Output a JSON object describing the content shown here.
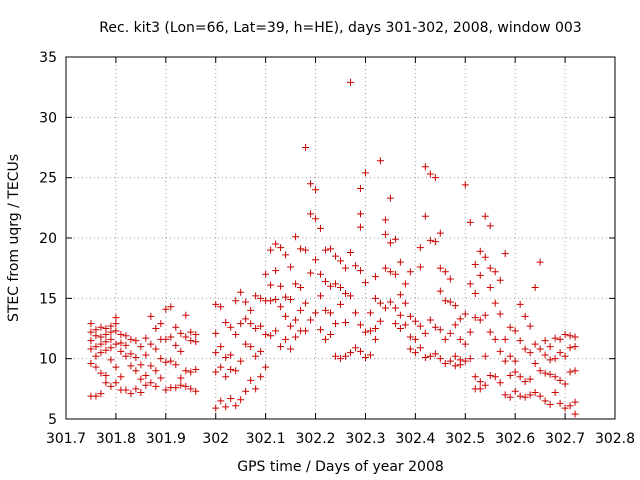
{
  "chart_data": {
    "type": "scatter",
    "title": "Rec. kit3 (Lon=66, Lat=39, h=HE), days 301-302, 2008, window 003",
    "xlabel": "GPS time / Days of year 2008",
    "ylabel": "STEC from uqrg / TECUs",
    "xlim": [
      301.7,
      302.8
    ],
    "ylim": [
      5,
      35
    ],
    "x_ticks": [
      301.7,
      301.8,
      301.9,
      302.0,
      302.1,
      302.2,
      302.3,
      302.4,
      302.5,
      302.6,
      302.7,
      302.8
    ],
    "x_tick_labels": [
      "301.7",
      "301.8",
      "301.9",
      "302",
      "302.1",
      "302.2",
      "302.3",
      "302.4",
      "302.5",
      "302.6",
      "302.7",
      "302.8"
    ],
    "y_ticks": [
      5,
      10,
      15,
      20,
      25,
      30,
      35
    ],
    "y_tick_labels": [
      "5",
      "10",
      "15",
      "20",
      "25",
      "30",
      "35"
    ],
    "grid": true,
    "marker": "+",
    "color": "#cc0000",
    "points": [
      [
        301.75,
        12.9
      ],
      [
        301.75,
        12.2
      ],
      [
        301.75,
        11.5
      ],
      [
        301.75,
        10.8
      ],
      [
        301.75,
        9.6
      ],
      [
        301.75,
        6.9
      ],
      [
        301.76,
        12.4
      ],
      [
        301.76,
        11.9
      ],
      [
        301.76,
        11.0
      ],
      [
        301.76,
        10.2
      ],
      [
        301.76,
        9.3
      ],
      [
        301.76,
        6.9
      ],
      [
        301.77,
        12.6
      ],
      [
        301.77,
        11.8
      ],
      [
        301.77,
        11.2
      ],
      [
        301.77,
        10.5
      ],
      [
        301.77,
        8.8
      ],
      [
        301.77,
        7.1
      ],
      [
        301.78,
        12.5
      ],
      [
        301.78,
        12.0
      ],
      [
        301.78,
        11.4
      ],
      [
        301.78,
        10.7
      ],
      [
        301.78,
        8.6
      ],
      [
        301.78,
        8.0
      ],
      [
        301.79,
        12.7
      ],
      [
        301.79,
        12.2
      ],
      [
        301.79,
        11.6
      ],
      [
        301.79,
        10.9
      ],
      [
        301.79,
        9.9
      ],
      [
        301.79,
        7.7
      ],
      [
        301.8,
        13.4
      ],
      [
        301.8,
        12.9
      ],
      [
        301.8,
        12.3
      ],
      [
        301.8,
        11.2
      ],
      [
        301.8,
        9.3
      ],
      [
        301.8,
        8.0
      ],
      [
        301.81,
        12.0
      ],
      [
        301.81,
        11.3
      ],
      [
        301.81,
        10.6
      ],
      [
        301.81,
        8.5
      ],
      [
        301.81,
        7.4
      ],
      [
        301.82,
        11.9
      ],
      [
        301.82,
        11.1
      ],
      [
        301.82,
        10.2
      ],
      [
        301.82,
        7.4
      ],
      [
        301.83,
        11.6
      ],
      [
        301.83,
        10.4
      ],
      [
        301.83,
        9.4
      ],
      [
        301.83,
        7.1
      ],
      [
        301.84,
        11.5
      ],
      [
        301.84,
        10.1
      ],
      [
        301.84,
        9.0
      ],
      [
        301.84,
        7.5
      ],
      [
        301.85,
        11.0
      ],
      [
        301.85,
        9.5
      ],
      [
        301.85,
        8.3
      ],
      [
        301.85,
        7.2
      ],
      [
        301.86,
        11.7
      ],
      [
        301.86,
        10.3
      ],
      [
        301.86,
        8.6
      ],
      [
        301.86,
        7.8
      ],
      [
        301.87,
        13.5
      ],
      [
        301.87,
        11.2
      ],
      [
        301.87,
        9.4
      ],
      [
        301.87,
        8.0
      ],
      [
        301.88,
        12.5
      ],
      [
        301.88,
        10.8
      ],
      [
        301.88,
        9.0
      ],
      [
        301.88,
        7.7
      ],
      [
        301.89,
        12.9
      ],
      [
        301.89,
        11.6
      ],
      [
        301.89,
        10.0
      ],
      [
        301.89,
        8.4
      ],
      [
        301.9,
        14.1
      ],
      [
        301.9,
        11.6
      ],
      [
        301.9,
        9.7
      ],
      [
        301.9,
        7.4
      ],
      [
        301.91,
        14.3
      ],
      [
        301.91,
        11.8
      ],
      [
        301.91,
        9.8
      ],
      [
        301.91,
        7.6
      ],
      [
        301.92,
        12.6
      ],
      [
        301.92,
        11.1
      ],
      [
        301.92,
        9.5
      ],
      [
        301.92,
        7.6
      ],
      [
        301.93,
        12.1
      ],
      [
        301.93,
        10.6
      ],
      [
        301.93,
        8.4
      ],
      [
        301.93,
        7.8
      ],
      [
        301.94,
        13.6
      ],
      [
        301.94,
        11.8
      ],
      [
        301.94,
        9.0
      ],
      [
        301.94,
        7.7
      ],
      [
        301.95,
        12.2
      ],
      [
        301.95,
        11.5
      ],
      [
        301.95,
        8.9
      ],
      [
        301.95,
        7.5
      ],
      [
        301.96,
        12.0
      ],
      [
        301.96,
        11.4
      ],
      [
        301.96,
        9.1
      ],
      [
        301.96,
        7.3
      ],
      [
        302.0,
        14.5
      ],
      [
        302.0,
        12.1
      ],
      [
        302.0,
        10.5
      ],
      [
        302.0,
        8.9
      ],
      [
        302.0,
        5.9
      ],
      [
        302.01,
        14.3
      ],
      [
        302.01,
        11.0
      ],
      [
        302.01,
        9.3
      ],
      [
        302.01,
        6.5
      ],
      [
        302.02,
        13.0
      ],
      [
        302.02,
        10.1
      ],
      [
        302.02,
        8.5
      ],
      [
        302.02,
        6.0
      ],
      [
        302.03,
        12.6
      ],
      [
        302.03,
        10.3
      ],
      [
        302.03,
        9.1
      ],
      [
        302.03,
        6.7
      ],
      [
        302.04,
        14.8
      ],
      [
        302.04,
        12.0
      ],
      [
        302.04,
        9.0
      ],
      [
        302.04,
        6.1
      ],
      [
        302.05,
        15.5
      ],
      [
        302.05,
        12.9
      ],
      [
        302.05,
        9.8
      ],
      [
        302.05,
        6.6
      ],
      [
        302.06,
        14.7
      ],
      [
        302.06,
        13.3
      ],
      [
        302.06,
        11.2
      ],
      [
        302.06,
        7.3
      ],
      [
        302.07,
        14.0
      ],
      [
        302.07,
        12.9
      ],
      [
        302.07,
        11.0
      ],
      [
        302.07,
        8.2
      ],
      [
        302.08,
        15.2
      ],
      [
        302.08,
        12.5
      ],
      [
        302.08,
        10.2
      ],
      [
        302.08,
        7.5
      ],
      [
        302.09,
        15.0
      ],
      [
        302.09,
        12.7
      ],
      [
        302.09,
        10.6
      ],
      [
        302.09,
        8.5
      ],
      [
        302.1,
        17.0
      ],
      [
        302.1,
        14.8
      ],
      [
        302.1,
        12.0
      ],
      [
        302.1,
        9.3
      ],
      [
        302.11,
        19.0
      ],
      [
        302.11,
        16.1
      ],
      [
        302.11,
        14.8
      ],
      [
        302.11,
        11.9
      ],
      [
        302.12,
        19.5
      ],
      [
        302.12,
        17.3
      ],
      [
        302.12,
        14.9
      ],
      [
        302.12,
        12.3
      ],
      [
        302.13,
        19.2
      ],
      [
        302.13,
        16.0
      ],
      [
        302.13,
        14.3
      ],
      [
        302.13,
        11.0
      ],
      [
        302.14,
        18.6
      ],
      [
        302.14,
        15.1
      ],
      [
        302.14,
        13.5
      ],
      [
        302.14,
        11.6
      ],
      [
        302.15,
        17.6
      ],
      [
        302.15,
        14.9
      ],
      [
        302.15,
        12.7
      ],
      [
        302.15,
        10.8
      ],
      [
        302.16,
        20.1
      ],
      [
        302.16,
        16.2
      ],
      [
        302.16,
        13.2
      ],
      [
        302.16,
        11.8
      ],
      [
        302.17,
        19.1
      ],
      [
        302.17,
        15.9
      ],
      [
        302.17,
        14.0
      ],
      [
        302.17,
        12.3
      ],
      [
        302.18,
        27.5
      ],
      [
        302.18,
        19.0
      ],
      [
        302.18,
        14.6
      ],
      [
        302.18,
        12.3
      ],
      [
        302.19,
        24.5
      ],
      [
        302.19,
        22.0
      ],
      [
        302.19,
        17.1
      ],
      [
        302.19,
        13.2
      ],
      [
        302.2,
        24.0
      ],
      [
        302.2,
        21.6
      ],
      [
        302.2,
        18.2
      ],
      [
        302.2,
        13.8
      ],
      [
        302.21,
        20.8
      ],
      [
        302.21,
        17.0
      ],
      [
        302.21,
        15.2
      ],
      [
        302.21,
        12.4
      ],
      [
        302.22,
        19.0
      ],
      [
        302.22,
        16.4
      ],
      [
        302.22,
        14.0
      ],
      [
        302.22,
        11.6
      ],
      [
        302.23,
        19.1
      ],
      [
        302.23,
        16.0
      ],
      [
        302.23,
        13.8
      ],
      [
        302.23,
        12.0
      ],
      [
        302.24,
        18.5
      ],
      [
        302.24,
        16.2
      ],
      [
        302.24,
        12.9
      ],
      [
        302.24,
        10.2
      ],
      [
        302.25,
        18.1
      ],
      [
        302.25,
        15.9
      ],
      [
        302.25,
        14.5
      ],
      [
        302.25,
        10.0
      ],
      [
        302.26,
        17.5
      ],
      [
        302.26,
        15.4
      ],
      [
        302.26,
        13.0
      ],
      [
        302.26,
        10.2
      ],
      [
        302.27,
        32.9
      ],
      [
        302.27,
        18.8
      ],
      [
        302.27,
        15.2
      ],
      [
        302.27,
        10.5
      ],
      [
        302.28,
        17.7
      ],
      [
        302.28,
        13.8
      ],
      [
        302.28,
        10.9
      ],
      [
        302.29,
        24.1
      ],
      [
        302.29,
        22.0
      ],
      [
        302.29,
        20.9
      ],
      [
        302.29,
        17.3
      ],
      [
        302.29,
        12.8
      ],
      [
        302.29,
        10.6
      ],
      [
        302.3,
        25.4
      ],
      [
        302.3,
        16.3
      ],
      [
        302.3,
        12.2
      ],
      [
        302.3,
        10.1
      ],
      [
        302.31,
        13.8
      ],
      [
        302.31,
        12.3
      ],
      [
        302.31,
        10.3
      ],
      [
        302.32,
        16.8
      ],
      [
        302.32,
        15.0
      ],
      [
        302.32,
        12.5
      ],
      [
        302.32,
        11.6
      ],
      [
        302.33,
        26.4
      ],
      [
        302.33,
        14.6
      ],
      [
        302.33,
        13.1
      ],
      [
        302.34,
        21.5
      ],
      [
        302.34,
        20.3
      ],
      [
        302.34,
        17.5
      ],
      [
        302.34,
        14.2
      ],
      [
        302.35,
        23.3
      ],
      [
        302.35,
        19.6
      ],
      [
        302.35,
        17.2
      ],
      [
        302.35,
        14.7
      ],
      [
        302.36,
        19.9
      ],
      [
        302.36,
        17.0
      ],
      [
        302.36,
        14.2
      ],
      [
        302.36,
        12.9
      ],
      [
        302.37,
        18.0
      ],
      [
        302.37,
        15.3
      ],
      [
        302.37,
        13.6
      ],
      [
        302.37,
        12.5
      ],
      [
        302.38,
        16.2
      ],
      [
        302.38,
        14.6
      ],
      [
        302.38,
        12.8
      ],
      [
        302.39,
        17.2
      ],
      [
        302.39,
        13.5
      ],
      [
        302.39,
        11.8
      ],
      [
        302.39,
        10.8
      ],
      [
        302.4,
        13.1
      ],
      [
        302.4,
        11.6
      ],
      [
        302.4,
        10.5
      ],
      [
        302.41,
        19.2
      ],
      [
        302.41,
        17.6
      ],
      [
        302.41,
        12.7
      ],
      [
        302.41,
        10.9
      ],
      [
        302.42,
        25.9
      ],
      [
        302.42,
        21.8
      ],
      [
        302.42,
        12.1
      ],
      [
        302.42,
        10.1
      ],
      [
        302.43,
        25.3
      ],
      [
        302.43,
        19.8
      ],
      [
        302.43,
        13.2
      ],
      [
        302.43,
        10.2
      ],
      [
        302.44,
        25.0
      ],
      [
        302.44,
        19.7
      ],
      [
        302.44,
        12.6
      ],
      [
        302.44,
        10.4
      ],
      [
        302.45,
        20.4
      ],
      [
        302.45,
        17.5
      ],
      [
        302.45,
        15.6
      ],
      [
        302.45,
        12.4
      ],
      [
        302.45,
        10.0
      ],
      [
        302.46,
        17.2
      ],
      [
        302.46,
        14.8
      ],
      [
        302.46,
        11.6
      ],
      [
        302.46,
        9.6
      ],
      [
        302.47,
        16.6
      ],
      [
        302.47,
        14.7
      ],
      [
        302.47,
        12.1
      ],
      [
        302.47,
        9.8
      ],
      [
        302.48,
        14.4
      ],
      [
        302.48,
        12.8
      ],
      [
        302.48,
        10.2
      ],
      [
        302.48,
        9.4
      ],
      [
        302.49,
        13.3
      ],
      [
        302.49,
        11.6
      ],
      [
        302.49,
        9.9
      ],
      [
        302.49,
        9.5
      ],
      [
        302.5,
        24.4
      ],
      [
        302.5,
        13.7
      ],
      [
        302.5,
        11.2
      ],
      [
        302.5,
        9.8
      ],
      [
        302.51,
        21.3
      ],
      [
        302.51,
        16.2
      ],
      [
        302.51,
        12.2
      ],
      [
        302.51,
        10.0
      ],
      [
        302.52,
        17.8
      ],
      [
        302.52,
        15.4
      ],
      [
        302.52,
        13.4
      ],
      [
        302.52,
        8.5
      ],
      [
        302.52,
        7.5
      ],
      [
        302.53,
        18.9
      ],
      [
        302.53,
        16.9
      ],
      [
        302.53,
        13.2
      ],
      [
        302.53,
        8.1
      ],
      [
        302.53,
        7.5
      ],
      [
        302.54,
        21.8
      ],
      [
        302.54,
        18.4
      ],
      [
        302.54,
        13.6
      ],
      [
        302.54,
        10.2
      ],
      [
        302.54,
        7.8
      ],
      [
        302.55,
        21.0
      ],
      [
        302.55,
        17.5
      ],
      [
        302.55,
        15.9
      ],
      [
        302.55,
        12.2
      ],
      [
        302.55,
        8.6
      ],
      [
        302.56,
        17.2
      ],
      [
        302.56,
        14.6
      ],
      [
        302.56,
        11.6
      ],
      [
        302.56,
        8.5
      ],
      [
        302.57,
        16.5
      ],
      [
        302.57,
        13.7
      ],
      [
        302.57,
        10.6
      ],
      [
        302.57,
        8.0
      ],
      [
        302.58,
        18.7
      ],
      [
        302.58,
        11.6
      ],
      [
        302.58,
        9.8
      ],
      [
        302.58,
        7.0
      ],
      [
        302.59,
        12.6
      ],
      [
        302.59,
        10.2
      ],
      [
        302.59,
        8.6
      ],
      [
        302.59,
        6.8
      ],
      [
        302.6,
        12.3
      ],
      [
        302.6,
        9.8
      ],
      [
        302.6,
        8.9
      ],
      [
        302.6,
        7.3
      ],
      [
        302.61,
        14.5
      ],
      [
        302.61,
        11.5
      ],
      [
        302.61,
        8.5
      ],
      [
        302.61,
        6.9
      ],
      [
        302.62,
        13.5
      ],
      [
        302.62,
        10.8
      ],
      [
        302.62,
        8.1
      ],
      [
        302.62,
        6.8
      ],
      [
        302.63,
        12.7
      ],
      [
        302.63,
        10.5
      ],
      [
        302.63,
        8.3
      ],
      [
        302.63,
        7.0
      ],
      [
        302.64,
        15.9
      ],
      [
        302.64,
        11.2
      ],
      [
        302.64,
        9.6
      ],
      [
        302.64,
        7.2
      ],
      [
        302.65,
        18.0
      ],
      [
        302.65,
        10.8
      ],
      [
        302.65,
        9.0
      ],
      [
        302.65,
        6.9
      ],
      [
        302.66,
        11.5
      ],
      [
        302.66,
        10.3
      ],
      [
        302.66,
        8.8
      ],
      [
        302.66,
        6.5
      ],
      [
        302.67,
        11.0
      ],
      [
        302.67,
        9.9
      ],
      [
        302.67,
        8.7
      ],
      [
        302.67,
        6.2
      ],
      [
        302.68,
        11.7
      ],
      [
        302.68,
        10.0
      ],
      [
        302.68,
        8.5
      ],
      [
        302.68,
        7.2
      ],
      [
        302.69,
        11.6
      ],
      [
        302.69,
        10.5
      ],
      [
        302.69,
        8.2
      ],
      [
        302.69,
        6.3
      ],
      [
        302.7,
        12.0
      ],
      [
        302.7,
        10.2
      ],
      [
        302.7,
        7.9
      ],
      [
        302.7,
        5.9
      ],
      [
        302.71,
        11.9
      ],
      [
        302.71,
        10.9
      ],
      [
        302.71,
        8.9
      ],
      [
        302.71,
        6.1
      ],
      [
        302.72,
        11.8
      ],
      [
        302.72,
        11.0
      ],
      [
        302.72,
        9.0
      ],
      [
        302.72,
        6.4
      ],
      [
        302.72,
        5.4
      ]
    ]
  }
}
